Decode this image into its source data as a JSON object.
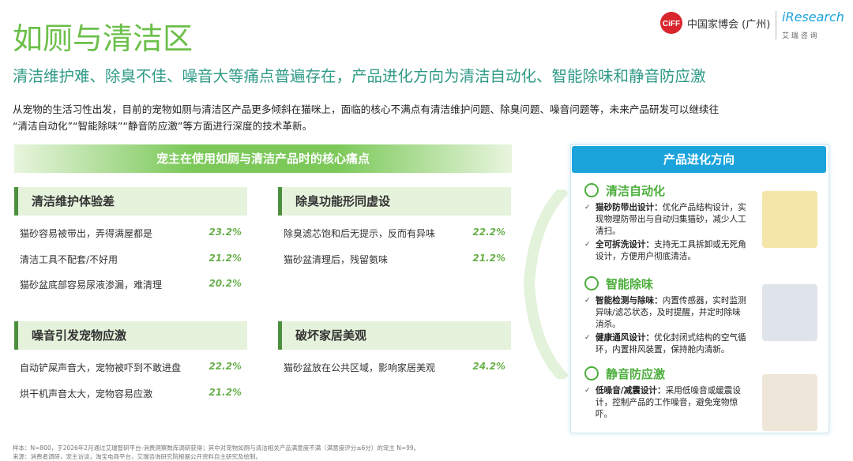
{
  "header": {
    "title": "如厕与清洁区",
    "subtitle": "清洁维护难、除臭不佳、噪音大等痛点普遍存在，产品进化方向为清洁自动化、智能除味和静音防应激",
    "logo": {
      "ciff": "CiFF",
      "brand": "中国家博会 (广州)",
      "research": "iResearch",
      "research_cn": "艾 瑞 咨 询"
    }
  },
  "intro": [
    "从宠物的生活习性出发，目前的宠物如厕与清洁区产品更多倾斜在猫咪上，面临的核心不满点有清洁维护问题、除臭问题、噪音问题等，未来产品研发可以继续往",
    "“清洁自动化”“智能除味”“静音防应激”等方面进行深度的技术革新。"
  ],
  "pain_points": {
    "title": "宠主在使用如厕与清洁产品时的核心痛点",
    "groups": [
      {
        "title": "清洁维护体验差",
        "items": [
          {
            "text": "猫砂容易被带出，弄得满屋都是",
            "value": "23.2%"
          },
          {
            "text": "清洁工具不配套/不好用",
            "value": "21.2%"
          },
          {
            "text": "猫砂盆底部容易尿液渗漏，难清理",
            "value": "20.2%"
          }
        ]
      },
      {
        "title": "除臭功能形同虚设",
        "items": [
          {
            "text": "除臭滤芯饱和后无提示，反而有异味",
            "value": "22.2%"
          },
          {
            "text": "猫砂盆清理后，残留氨味",
            "value": "21.2%"
          }
        ]
      },
      {
        "title": "噪音引发宠物应激",
        "items": [
          {
            "text": "自动铲屎声音大，宠物被吓到不敢进盘",
            "value": "22.2%"
          },
          {
            "text": "烘干机声音太大，宠物容易应激",
            "value": "21.2%"
          }
        ]
      },
      {
        "title": "破坏家居美观",
        "items": [
          {
            "text": "猫砂盆放在公共区域，影响家居美观",
            "value": "24.2%"
          }
        ]
      }
    ]
  },
  "evolution": {
    "title": "产品进化方向",
    "sections": [
      {
        "title": "清洁自动化",
        "bullets": [
          {
            "label": "猫砂防带出设计：",
            "text": "优化产品结构设计，实现物理防带出与自动归集猫砂，减少人工清扫。"
          },
          {
            "label": "全可拆洗设计：",
            "text": "支持无工具拆卸或无死角设计，方便用户彻底清洁。"
          }
        ]
      },
      {
        "title": "智能除味",
        "bullets": [
          {
            "label": "智能检测与除味：",
            "text": "内置传感器，实时监测异味/滤芯状态，及时提醒，并定时除味消杀。"
          },
          {
            "label": "健康通风设计：",
            "text": "优化封闭式结构的空气循环，内置排风装置，保持舱内清新。"
          }
        ]
      },
      {
        "title": "静音防应激",
        "bullets": [
          {
            "label": "低噪音/减震设计：",
            "text": "采用低噪音或缓震设计，控制产品的工作噪音，避免宠物惊吓。"
          }
        ]
      }
    ]
  },
  "footer": {
    "notes": [
      "样本：N=800，于2026年2月通过艾瑞智研平台-消费洞察数库调研获得；其中对宠物如厕与清洁相关产品满意度不满（满意度评分≤6分）的宠主 N=99。",
      "来源：消费者调研，宠主访谈，淘宝电商平台，艾瑞咨询研究院根据公开资料自主研究及绘制。"
    ]
  }
}
